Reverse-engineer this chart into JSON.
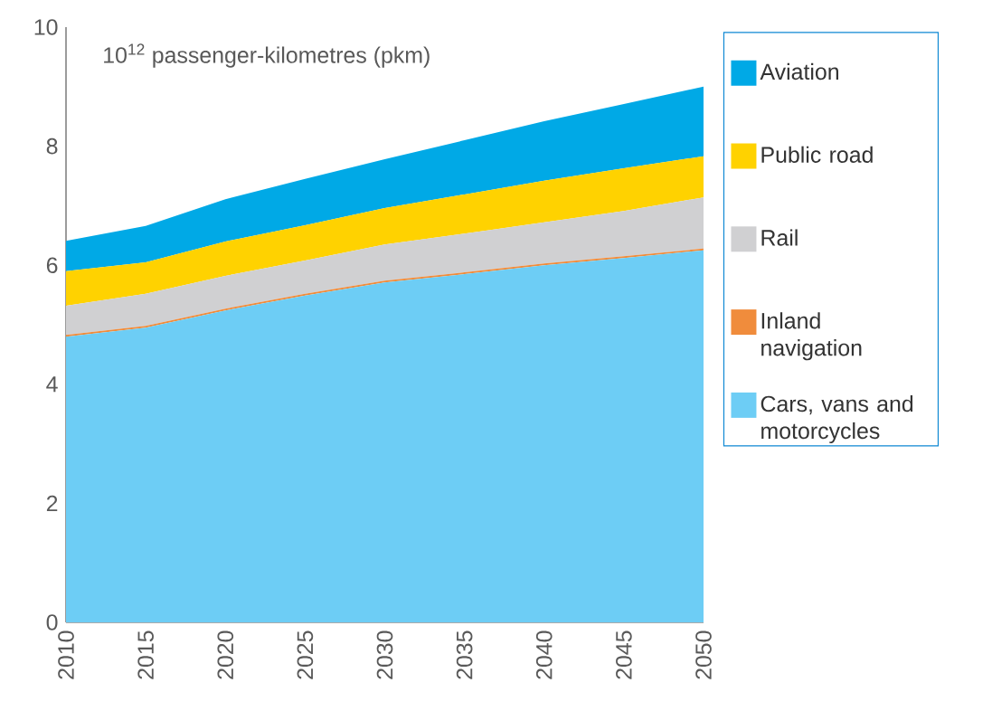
{
  "chart_data": {
    "type": "area",
    "stacked": true,
    "ylabel": "10$^{12}$ passenger-kilometres (pkm)",
    "x": [
      2010,
      2015,
      2020,
      2025,
      2030,
      2035,
      2040,
      2045,
      2050
    ],
    "xlim": [
      2010,
      2050
    ],
    "xticks": [
      2010,
      2015,
      2020,
      2025,
      2030,
      2035,
      2040,
      2045,
      2050
    ],
    "ylim": [
      0,
      10
    ],
    "yticks": [
      0,
      2,
      4,
      6,
      8,
      10
    ],
    "grid": false,
    "legend": "right",
    "series": [
      {
        "name": "Cars, vans and motorcycles",
        "color": "#6dcdf5",
        "values": [
          4.8,
          4.95,
          5.24,
          5.49,
          5.71,
          5.85,
          6.0,
          6.12,
          6.25
        ]
      },
      {
        "name": "Inland navigation",
        "color": "#f08c3c",
        "values": [
          0.03,
          0.03,
          0.03,
          0.03,
          0.03,
          0.03,
          0.03,
          0.03,
          0.03
        ]
      },
      {
        "name": "Rail",
        "color": "#d0d0d2",
        "values": [
          0.49,
          0.54,
          0.55,
          0.56,
          0.61,
          0.65,
          0.69,
          0.76,
          0.86
        ]
      },
      {
        "name": "Public road",
        "color": "#ffd200",
        "values": [
          0.58,
          0.53,
          0.58,
          0.59,
          0.61,
          0.66,
          0.7,
          0.72,
          0.69
        ]
      },
      {
        "name": "Aviation",
        "color": "#00a9e6",
        "values": [
          0.51,
          0.61,
          0.71,
          0.78,
          0.82,
          0.91,
          1.0,
          1.08,
          1.17
        ]
      }
    ]
  }
}
